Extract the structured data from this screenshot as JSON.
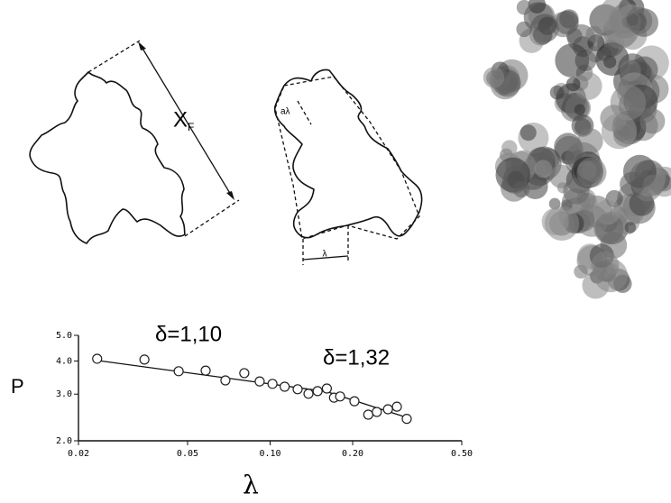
{
  "illustrations": {
    "feret_label": "X",
    "feret_subscript": "F",
    "step_label": "aλ",
    "step_length_label": "λ"
  },
  "chart_data": {
    "type": "scatter",
    "xlabel": "λ",
    "ylabel": "P",
    "annotations": [
      "δ=1,10",
      "δ=1,32"
    ],
    "xscale": "log",
    "yscale": "log",
    "xlim": [
      0.02,
      0.5
    ],
    "xticks": [
      0.02,
      0.05,
      {
        "value": 0.1,
        "label": "0.10"
      },
      {
        "value": 0.2,
        "label": "0.20"
      },
      {
        "value": 0.5,
        "label": "0.50"
      }
    ],
    "ylim": [
      2,
      5
    ],
    "yticks": [
      {
        "value": 2,
        "label": "2.0"
      },
      {
        "value": 3,
        "label": "3.0"
      },
      {
        "value": 4,
        "label": "4.0"
      },
      {
        "value": 5,
        "label": "5.0"
      }
    ],
    "x": [
      0.0234,
      0.0348,
      0.0464,
      0.0582,
      0.0687,
      0.0805,
      0.0916,
      0.102,
      0.113,
      0.126,
      0.138,
      0.149,
      0.161,
      0.171,
      0.18,
      0.203,
      0.228,
      0.245,
      0.269,
      0.29,
      0.315
    ],
    "series": [
      {
        "color": "#222222",
        "values": [
          4.08,
          4.05,
          3.66,
          3.68,
          3.38,
          3.6,
          3.35,
          3.28,
          3.2,
          3.13,
          3.01,
          3.08,
          3.15,
          2.91,
          2.94,
          2.82,
          2.51,
          2.57,
          2.63,
          2.69,
          2.42
        ]
      }
    ],
    "fit": {
      "color": "#111111",
      "x": [
        0.0234,
        0.16,
        0.315
      ],
      "values": [
        4.02,
        3.07,
        2.45
      ]
    }
  }
}
